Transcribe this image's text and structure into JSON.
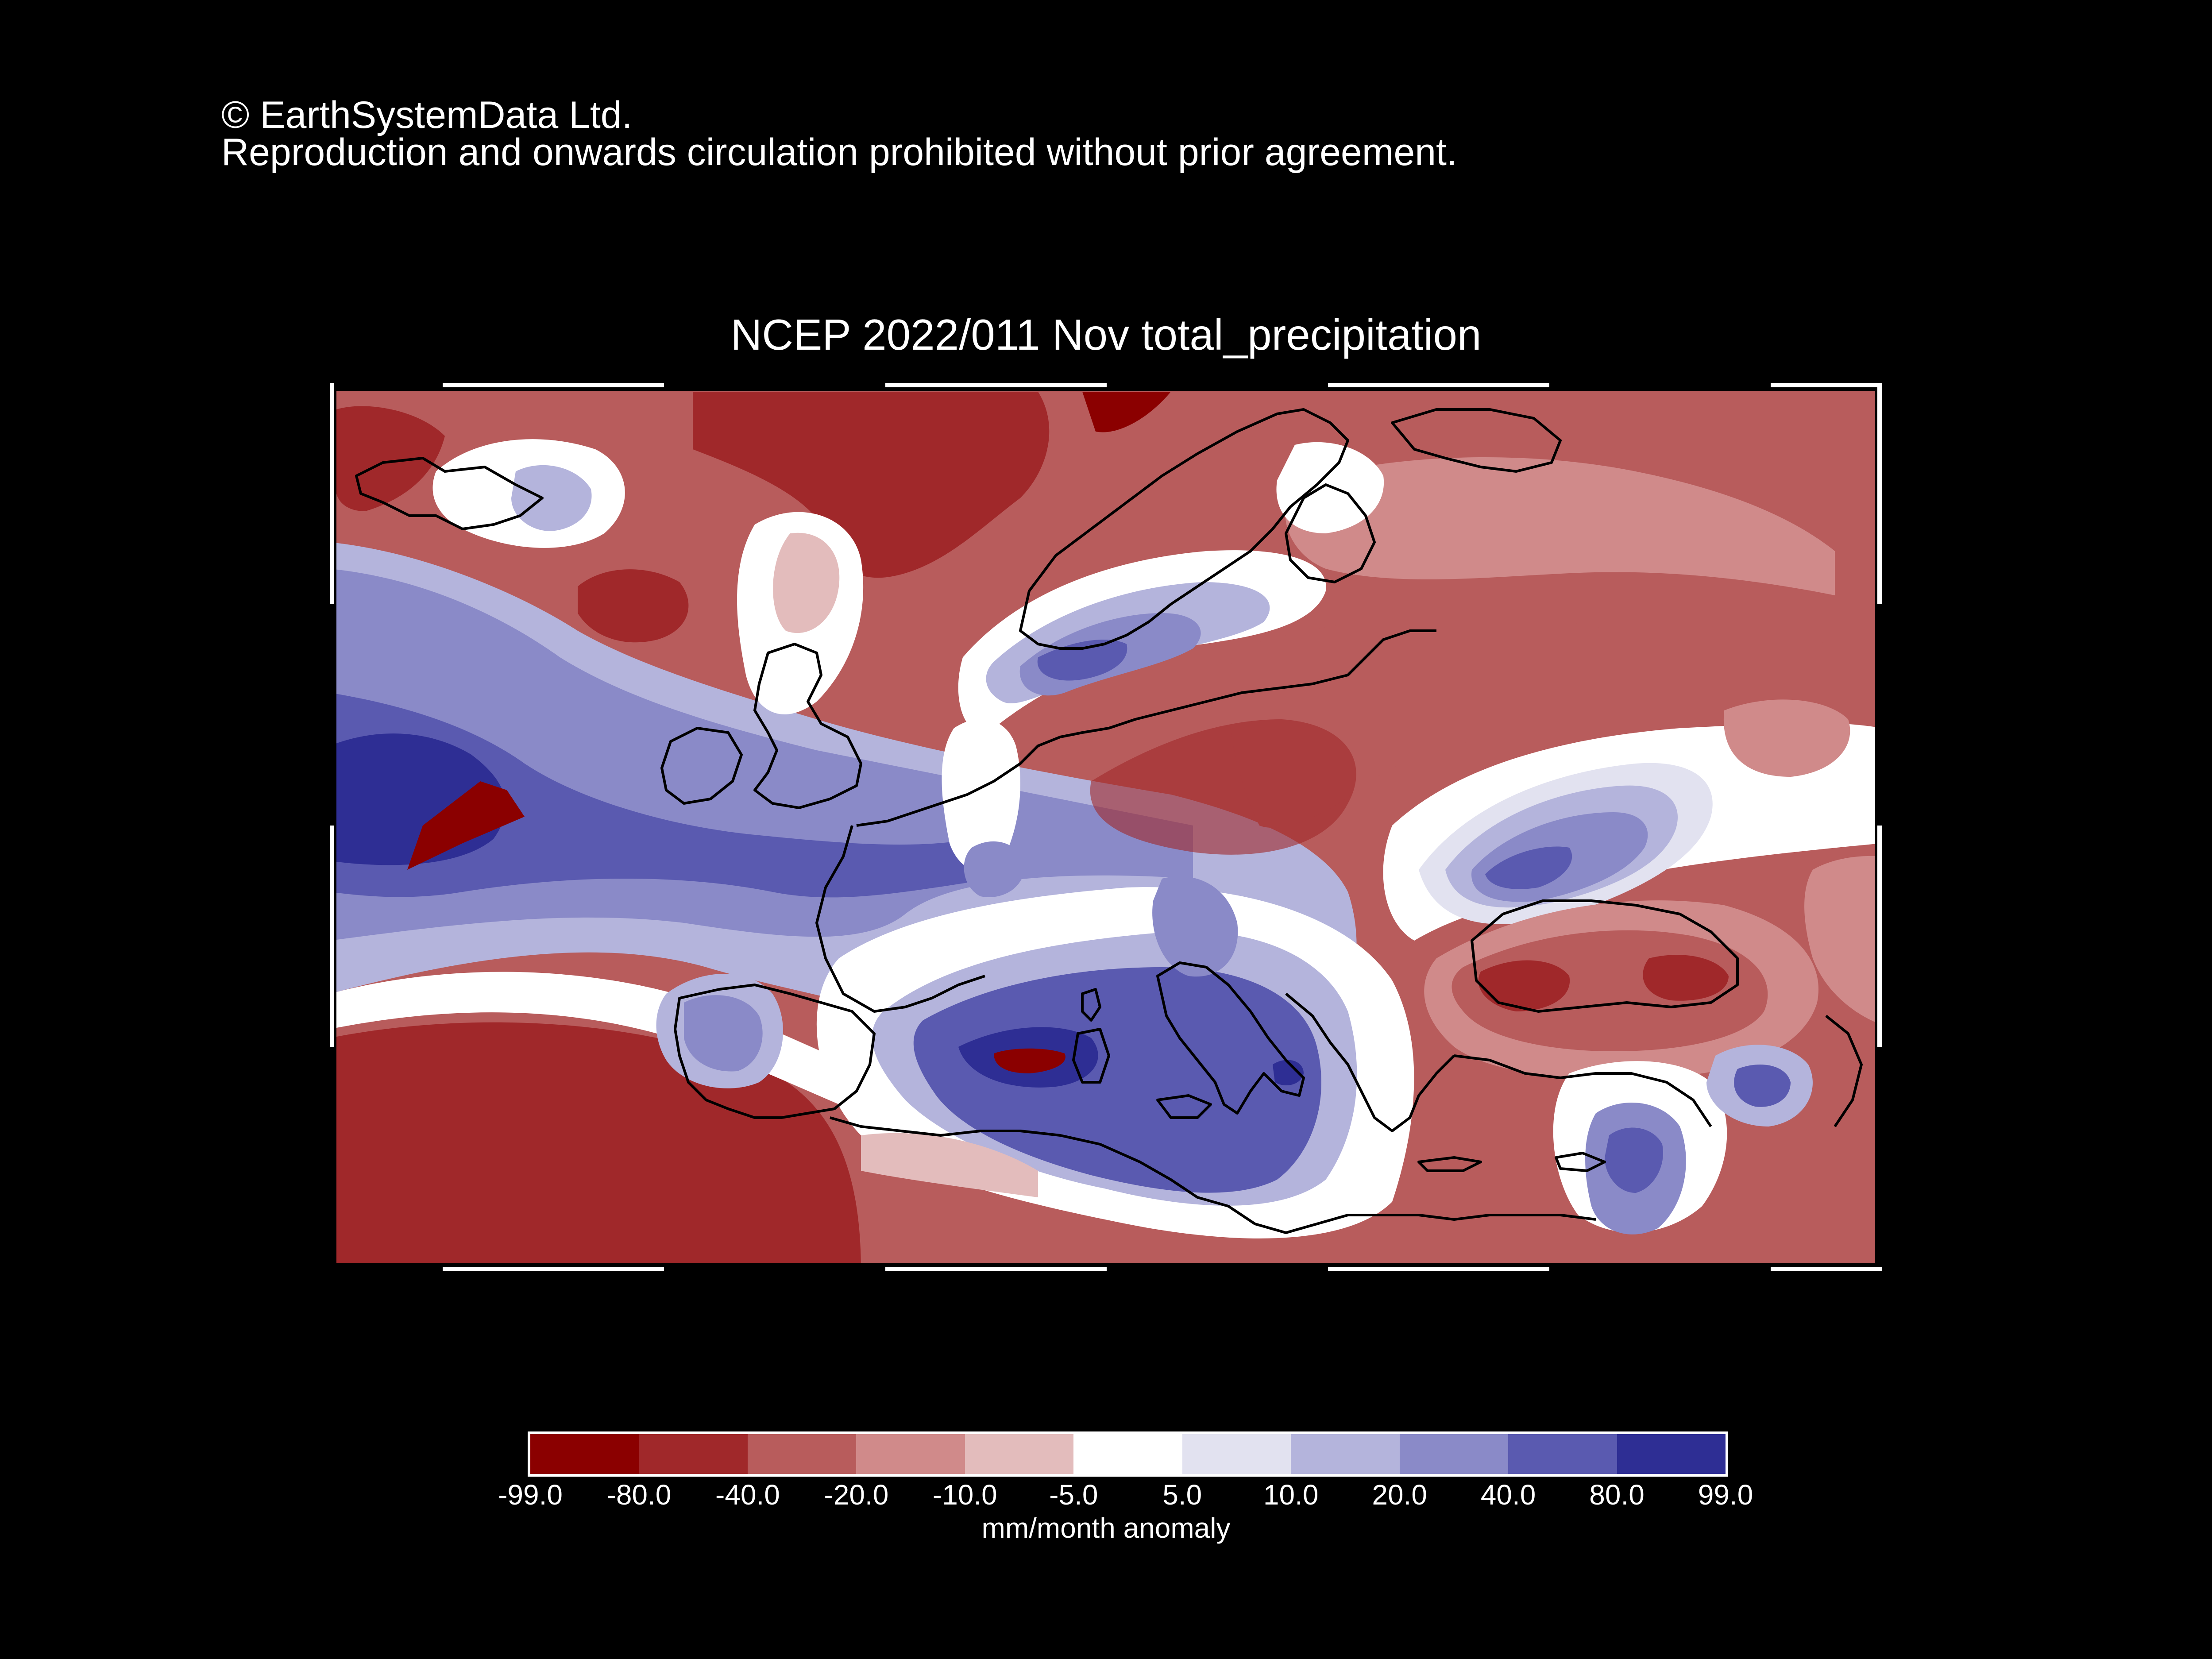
{
  "copyright": {
    "line1": "© EarthSystemData Ltd.",
    "line2": "Reproduction and onwards circulation prohibited without prior agreement."
  },
  "map": {
    "title": "NCEP 2022/011 Nov total_precipitation",
    "region": "Europe / North Atlantic / Mediterranean",
    "coastline_color": "#000000"
  },
  "legend": {
    "units": "mm/month anomaly",
    "ticks": [
      "-99.0",
      "-80.0",
      "-40.0",
      "-20.0",
      "-10.0",
      "-5.0",
      "5.0",
      "10.0",
      "20.0",
      "40.0",
      "80.0",
      "99.0"
    ],
    "colors": [
      "#8b0000",
      "#a0282a",
      "#b85c5c",
      "#d08a8a",
      "#e3bcbc",
      "#ffffff",
      "#e2e2f0",
      "#b4b4dc",
      "#8a8ac8",
      "#5a5ab0",
      "#2e2e94"
    ]
  }
}
